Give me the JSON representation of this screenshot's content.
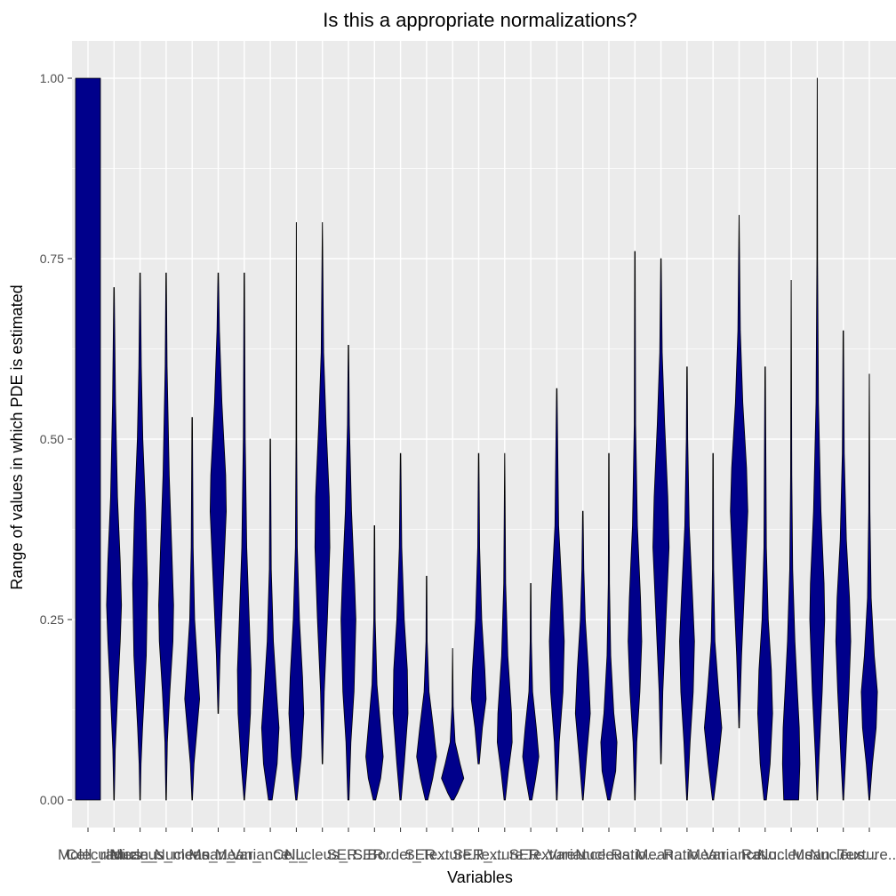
{
  "chart_data": {
    "type": "violin",
    "title": "Is this a appropriate normalizations?",
    "xlabel": "Variables",
    "ylabel": "Range of values in which PDE is estimated",
    "ylim": [
      -0.05,
      1.05
    ],
    "yticks": [
      "0.00",
      "0.25",
      "0.50",
      "0.75",
      "1.00"
    ],
    "grid": true,
    "legend": "none",
    "fill_color": "#00008B",
    "panel_color": "#EBEBEB",
    "categories": [
      "Molecule",
      "Cell_radius_...",
      "Mean_...",
      "Nucleus_mean...",
      "Nucleus_...",
      "Mean_...",
      "Mean_...",
      "Variance_...",
      "Cell_...",
      "Nucleus_...",
      "SER...",
      "SER...",
      "Border_...",
      "SER...",
      "Texture...",
      "SER_...",
      "Texture...",
      "SER...",
      "Texture...",
      "Variance...",
      "Nucleus...",
      "Ratio...",
      "Mean...",
      "Ratio...",
      "Mean...",
      "Variance...",
      "Ratio...",
      "Nucleus...",
      "Mean...",
      "Nucleus...",
      "Texture..."
    ],
    "violins": [
      {
        "min": 0.0,
        "max": 1.0,
        "width": [
          [
            0.0,
            1
          ],
          [
            1.0,
            1
          ]
        ]
      },
      {
        "min": 0.0,
        "max": 0.71,
        "width": [
          [
            0.0,
            0.02
          ],
          [
            0.07,
            0.1
          ],
          [
            0.15,
            0.3
          ],
          [
            0.22,
            0.5
          ],
          [
            0.27,
            0.6
          ],
          [
            0.33,
            0.5
          ],
          [
            0.42,
            0.28
          ],
          [
            0.55,
            0.12
          ],
          [
            0.71,
            0.02
          ]
        ]
      },
      {
        "min": 0.0,
        "max": 0.73,
        "width": [
          [
            0.0,
            0.02
          ],
          [
            0.05,
            0.08
          ],
          [
            0.1,
            0.2
          ],
          [
            0.2,
            0.5
          ],
          [
            0.3,
            0.6
          ],
          [
            0.4,
            0.45
          ],
          [
            0.5,
            0.22
          ],
          [
            0.6,
            0.1
          ],
          [
            0.73,
            0.02
          ]
        ]
      },
      {
        "min": 0.0,
        "max": 0.73,
        "width": [
          [
            0.0,
            0.02
          ],
          [
            0.08,
            0.1
          ],
          [
            0.15,
            0.3
          ],
          [
            0.22,
            0.55
          ],
          [
            0.27,
            0.6
          ],
          [
            0.35,
            0.45
          ],
          [
            0.45,
            0.25
          ],
          [
            0.6,
            0.08
          ],
          [
            0.73,
            0.02
          ]
        ]
      },
      {
        "min": 0.0,
        "max": 0.53,
        "width": [
          [
            0.0,
            0.02
          ],
          [
            0.05,
            0.15
          ],
          [
            0.1,
            0.4
          ],
          [
            0.14,
            0.6
          ],
          [
            0.18,
            0.45
          ],
          [
            0.25,
            0.2
          ],
          [
            0.35,
            0.08
          ],
          [
            0.53,
            0.02
          ]
        ]
      },
      {
        "min": 0.12,
        "max": 0.73,
        "width": [
          [
            0.12,
            0.02
          ],
          [
            0.2,
            0.15
          ],
          [
            0.3,
            0.4
          ],
          [
            0.4,
            0.65
          ],
          [
            0.45,
            0.6
          ],
          [
            0.55,
            0.3
          ],
          [
            0.65,
            0.1
          ],
          [
            0.73,
            0.02
          ]
        ]
      },
      {
        "min": 0.0,
        "max": 0.73,
        "width": [
          [
            0.0,
            0.02
          ],
          [
            0.05,
            0.25
          ],
          [
            0.12,
            0.5
          ],
          [
            0.18,
            0.55
          ],
          [
            0.25,
            0.4
          ],
          [
            0.35,
            0.2
          ],
          [
            0.5,
            0.08
          ],
          [
            0.73,
            0.02
          ]
        ]
      },
      {
        "min": 0.0,
        "max": 0.5,
        "width": [
          [
            0.0,
            0.15
          ],
          [
            0.05,
            0.55
          ],
          [
            0.1,
            0.7
          ],
          [
            0.15,
            0.5
          ],
          [
            0.22,
            0.25
          ],
          [
            0.32,
            0.08
          ],
          [
            0.5,
            0.02
          ]
        ]
      },
      {
        "min": 0.0,
        "max": 0.8,
        "width": [
          [
            0.0,
            0.05
          ],
          [
            0.06,
            0.4
          ],
          [
            0.12,
            0.6
          ],
          [
            0.17,
            0.5
          ],
          [
            0.25,
            0.25
          ],
          [
            0.35,
            0.08
          ],
          [
            0.5,
            0.03
          ],
          [
            0.8,
            0.01
          ]
        ]
      },
      {
        "min": 0.05,
        "max": 0.8,
        "width": [
          [
            0.05,
            0.02
          ],
          [
            0.15,
            0.15
          ],
          [
            0.25,
            0.4
          ],
          [
            0.35,
            0.6
          ],
          [
            0.42,
            0.55
          ],
          [
            0.52,
            0.3
          ],
          [
            0.62,
            0.1
          ],
          [
            0.8,
            0.01
          ]
        ]
      },
      {
        "min": 0.0,
        "max": 0.63,
        "width": [
          [
            0.0,
            0.05
          ],
          [
            0.08,
            0.2
          ],
          [
            0.15,
            0.45
          ],
          [
            0.25,
            0.6
          ],
          [
            0.3,
            0.5
          ],
          [
            0.4,
            0.25
          ],
          [
            0.52,
            0.08
          ],
          [
            0.63,
            0.02
          ]
        ]
      },
      {
        "min": 0.0,
        "max": 0.38,
        "width": [
          [
            0.0,
            0.1
          ],
          [
            0.03,
            0.5
          ],
          [
            0.06,
            0.7
          ],
          [
            0.1,
            0.5
          ],
          [
            0.16,
            0.2
          ],
          [
            0.25,
            0.06
          ],
          [
            0.38,
            0.02
          ]
        ]
      },
      {
        "min": 0.0,
        "max": 0.48,
        "width": [
          [
            0.0,
            0.05
          ],
          [
            0.05,
            0.3
          ],
          [
            0.12,
            0.6
          ],
          [
            0.18,
            0.55
          ],
          [
            0.25,
            0.3
          ],
          [
            0.35,
            0.1
          ],
          [
            0.48,
            0.02
          ]
        ]
      },
      {
        "min": 0.0,
        "max": 0.31,
        "width": [
          [
            0.0,
            0.1
          ],
          [
            0.03,
            0.5
          ],
          [
            0.06,
            0.8
          ],
          [
            0.1,
            0.55
          ],
          [
            0.15,
            0.2
          ],
          [
            0.22,
            0.05
          ],
          [
            0.31,
            0.02
          ]
        ]
      },
      {
        "min": 0.0,
        "max": 0.21,
        "width": [
          [
            0.0,
            0.1
          ],
          [
            0.01,
            0.4
          ],
          [
            0.03,
            0.9
          ],
          [
            0.05,
            0.6
          ],
          [
            0.08,
            0.2
          ],
          [
            0.13,
            0.05
          ],
          [
            0.21,
            0.01
          ]
        ]
      },
      {
        "min": 0.05,
        "max": 0.48,
        "width": [
          [
            0.05,
            0.05
          ],
          [
            0.1,
            0.3
          ],
          [
            0.14,
            0.6
          ],
          [
            0.18,
            0.5
          ],
          [
            0.25,
            0.25
          ],
          [
            0.35,
            0.08
          ],
          [
            0.48,
            0.02
          ]
        ]
      },
      {
        "min": 0.0,
        "max": 0.48,
        "width": [
          [
            0.0,
            0.05
          ],
          [
            0.04,
            0.3
          ],
          [
            0.08,
            0.6
          ],
          [
            0.12,
            0.55
          ],
          [
            0.2,
            0.25
          ],
          [
            0.3,
            0.08
          ],
          [
            0.48,
            0.01
          ]
        ]
      },
      {
        "min": 0.0,
        "max": 0.3,
        "width": [
          [
            0.0,
            0.1
          ],
          [
            0.03,
            0.4
          ],
          [
            0.06,
            0.65
          ],
          [
            0.1,
            0.45
          ],
          [
            0.15,
            0.15
          ],
          [
            0.22,
            0.05
          ],
          [
            0.3,
            0.02
          ]
        ]
      },
      {
        "min": 0.0,
        "max": 0.57,
        "width": [
          [
            0.0,
            0.03
          ],
          [
            0.08,
            0.2
          ],
          [
            0.15,
            0.5
          ],
          [
            0.22,
            0.6
          ],
          [
            0.28,
            0.45
          ],
          [
            0.38,
            0.15
          ],
          [
            0.57,
            0.02
          ]
        ]
      },
      {
        "min": 0.0,
        "max": 0.4,
        "width": [
          [
            0.0,
            0.03
          ],
          [
            0.06,
            0.3
          ],
          [
            0.12,
            0.6
          ],
          [
            0.18,
            0.45
          ],
          [
            0.25,
            0.2
          ],
          [
            0.32,
            0.08
          ],
          [
            0.4,
            0.02
          ]
        ]
      },
      {
        "min": 0.0,
        "max": 0.48,
        "width": [
          [
            0.0,
            0.1
          ],
          [
            0.04,
            0.55
          ],
          [
            0.08,
            0.65
          ],
          [
            0.12,
            0.4
          ],
          [
            0.2,
            0.15
          ],
          [
            0.3,
            0.05
          ],
          [
            0.48,
            0.02
          ]
        ]
      },
      {
        "min": 0.0,
        "max": 0.76,
        "width": [
          [
            0.0,
            0.02
          ],
          [
            0.08,
            0.15
          ],
          [
            0.15,
            0.4
          ],
          [
            0.22,
            0.55
          ],
          [
            0.28,
            0.45
          ],
          [
            0.38,
            0.2
          ],
          [
            0.52,
            0.06
          ],
          [
            0.76,
            0.02
          ]
        ]
      },
      {
        "min": 0.05,
        "max": 0.75,
        "width": [
          [
            0.05,
            0.02
          ],
          [
            0.15,
            0.15
          ],
          [
            0.25,
            0.4
          ],
          [
            0.35,
            0.65
          ],
          [
            0.42,
            0.55
          ],
          [
            0.52,
            0.3
          ],
          [
            0.62,
            0.1
          ],
          [
            0.75,
            0.02
          ]
        ]
      },
      {
        "min": 0.0,
        "max": 0.6,
        "width": [
          [
            0.0,
            0.03
          ],
          [
            0.08,
            0.25
          ],
          [
            0.15,
            0.5
          ],
          [
            0.22,
            0.6
          ],
          [
            0.28,
            0.45
          ],
          [
            0.38,
            0.18
          ],
          [
            0.5,
            0.06
          ],
          [
            0.6,
            0.02
          ]
        ]
      },
      {
        "min": 0.0,
        "max": 0.48,
        "width": [
          [
            0.0,
            0.05
          ],
          [
            0.05,
            0.4
          ],
          [
            0.1,
            0.7
          ],
          [
            0.15,
            0.45
          ],
          [
            0.22,
            0.15
          ],
          [
            0.32,
            0.05
          ],
          [
            0.48,
            0.02
          ]
        ]
      },
      {
        "min": 0.1,
        "max": 0.81,
        "width": [
          [
            0.1,
            0.02
          ],
          [
            0.2,
            0.2
          ],
          [
            0.3,
            0.45
          ],
          [
            0.4,
            0.7
          ],
          [
            0.46,
            0.6
          ],
          [
            0.55,
            0.3
          ],
          [
            0.65,
            0.1
          ],
          [
            0.81,
            0.01
          ]
        ]
      },
      {
        "min": 0.0,
        "max": 0.6,
        "width": [
          [
            0.0,
            0.1
          ],
          [
            0.05,
            0.4
          ],
          [
            0.12,
            0.6
          ],
          [
            0.18,
            0.5
          ],
          [
            0.25,
            0.25
          ],
          [
            0.35,
            0.1
          ],
          [
            0.6,
            0.02
          ]
        ]
      },
      {
        "min": 0.0,
        "max": 0.72,
        "width": [
          [
            0.0,
            0.6
          ],
          [
            0.05,
            0.7
          ],
          [
            0.1,
            0.65
          ],
          [
            0.15,
            0.5
          ],
          [
            0.22,
            0.3
          ],
          [
            0.32,
            0.12
          ],
          [
            0.45,
            0.05
          ],
          [
            0.72,
            0.01
          ]
        ]
      },
      {
        "min": 0.0,
        "max": 1.0,
        "width": [
          [
            0.0,
            0.02
          ],
          [
            0.06,
            0.15
          ],
          [
            0.15,
            0.4
          ],
          [
            0.25,
            0.6
          ],
          [
            0.3,
            0.55
          ],
          [
            0.4,
            0.3
          ],
          [
            0.55,
            0.1
          ],
          [
            0.75,
            0.03
          ],
          [
            1.0,
            0.01
          ]
        ]
      },
      {
        "min": 0.0,
        "max": 0.65,
        "width": [
          [
            0.0,
            0.03
          ],
          [
            0.06,
            0.2
          ],
          [
            0.15,
            0.45
          ],
          [
            0.22,
            0.6
          ],
          [
            0.28,
            0.5
          ],
          [
            0.36,
            0.25
          ],
          [
            0.48,
            0.08
          ],
          [
            0.65,
            0.02
          ]
        ]
      },
      {
        "min": 0.0,
        "max": 0.59,
        "width": [
          [
            0.0,
            0.03
          ],
          [
            0.05,
            0.25
          ],
          [
            0.1,
            0.55
          ],
          [
            0.15,
            0.65
          ],
          [
            0.2,
            0.4
          ],
          [
            0.28,
            0.15
          ],
          [
            0.4,
            0.05
          ],
          [
            0.59,
            0.01
          ]
        ]
      }
    ]
  }
}
